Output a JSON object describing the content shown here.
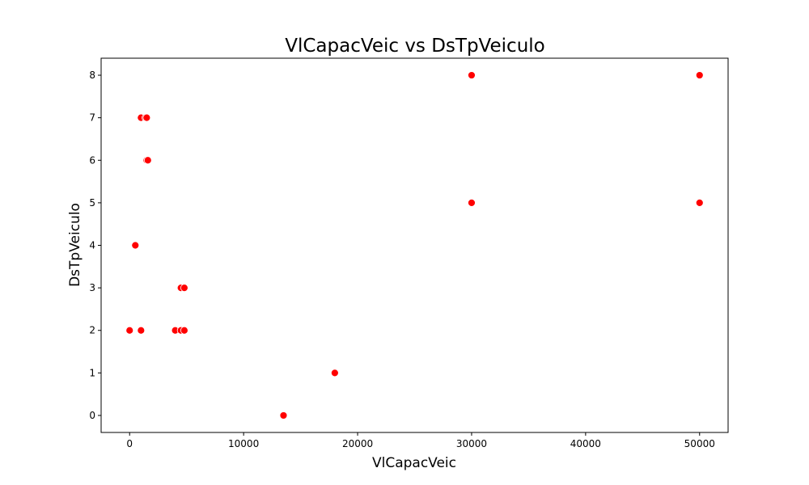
{
  "chart_data": {
    "type": "scatter",
    "title": "VlCapacVeic vs DsTpVeiculo",
    "xlabel": "VlCapacVeic",
    "ylabel": "DsTpVeiculo",
    "xlim": [
      -2500,
      52500
    ],
    "ylim": [
      -0.4,
      8.4
    ],
    "xticks": [
      0,
      10000,
      20000,
      30000,
      40000,
      50000
    ],
    "yticks": [
      0,
      1,
      2,
      3,
      4,
      5,
      6,
      7,
      8
    ],
    "grid": false,
    "marker_color": "#ff0000",
    "marker_edge_color": "#ffffff",
    "series": [
      {
        "points": [
          [
            0,
            2
          ],
          [
            1000,
            2
          ],
          [
            4000,
            2
          ],
          [
            4500,
            2
          ],
          [
            4800,
            2
          ],
          [
            4500,
            3
          ],
          [
            4800,
            3
          ],
          [
            500,
            4
          ],
          [
            1500,
            6
          ],
          [
            1600,
            6
          ],
          [
            1000,
            7
          ],
          [
            1400,
            7
          ],
          [
            1500,
            7
          ],
          [
            13500,
            0
          ],
          [
            18000,
            1
          ],
          [
            30000,
            5
          ],
          [
            30000,
            8
          ],
          [
            50000,
            5
          ],
          [
            50000,
            8
          ]
        ]
      }
    ]
  }
}
